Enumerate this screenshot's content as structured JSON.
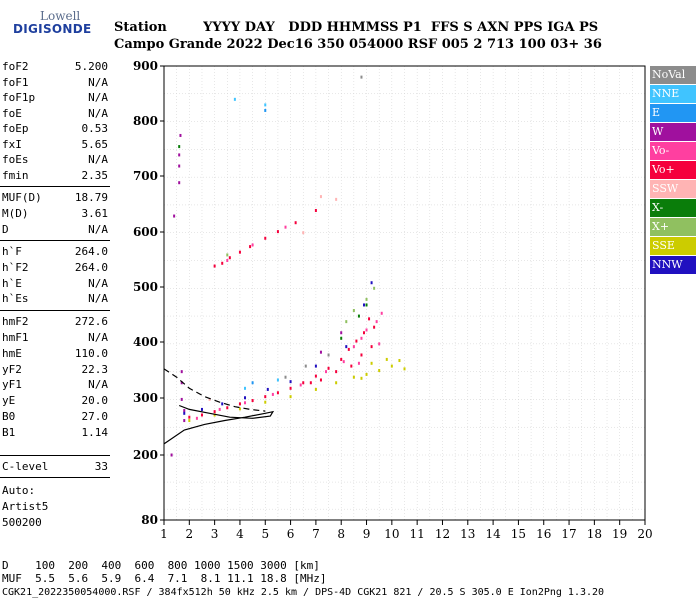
{
  "logo": {
    "line1": "Lowell",
    "line2": "DIGISONDE"
  },
  "header": {
    "row1": "Station        YYYY DAY   DDD HHMMSS P1  FFS S AXN PPS IGA PS",
    "row2": "Campo Grande 2022 Dec16 350 054000 RSF 005 2 713 100 03+ 36"
  },
  "params": [
    {
      "name": "foF2",
      "value": "5.200"
    },
    {
      "name": "foF1",
      "value": "N/A"
    },
    {
      "name": "foF1p",
      "value": "N/A"
    },
    {
      "name": "foE",
      "value": "N/A"
    },
    {
      "name": "foEp",
      "value": "0.53"
    },
    {
      "name": "fxI",
      "value": "5.65"
    },
    {
      "name": "foEs",
      "value": "N/A"
    },
    {
      "name": "fmin",
      "value": "2.35"
    },
    {
      "name": "MUF(D)",
      "value": "18.79"
    },
    {
      "name": "M(D)",
      "value": "3.61"
    },
    {
      "name": "D",
      "value": "N/A"
    },
    {
      "name": "h`F",
      "value": "264.0"
    },
    {
      "name": "h`F2",
      "value": "264.0"
    },
    {
      "name": "h`E",
      "value": "N/A"
    },
    {
      "name": "h`Es",
      "value": "N/A"
    },
    {
      "name": "hmF2",
      "value": "272.6"
    },
    {
      "name": "hmF1",
      "value": "N/A"
    },
    {
      "name": "hmE",
      "value": "110.0"
    },
    {
      "name": "yF2",
      "value": "22.3"
    },
    {
      "name": "yF1",
      "value": "N/A"
    },
    {
      "name": "yE",
      "value": "20.0"
    },
    {
      "name": "B0",
      "value": "27.0"
    },
    {
      "name": "B1",
      "value": "1.14"
    },
    {
      "name": "C-level",
      "value": "33"
    }
  ],
  "auto": {
    "line1": "Auto:",
    "line2": "Artist5",
    "line3": "500200"
  },
  "legend": [
    {
      "label": "NoVal",
      "color": "#8c8c8c"
    },
    {
      "label": "NNE",
      "color": "#40c4ff"
    },
    {
      "label": "E",
      "color": "#2196f3"
    },
    {
      "label": "W",
      "color": "#a0109e"
    },
    {
      "label": "Vo-",
      "color": "#ff3fa0"
    },
    {
      "label": "Vo+",
      "color": "#f5003c"
    },
    {
      "label": "SSW",
      "color": "#ffb4b4"
    },
    {
      "label": "X-",
      "color": "#0a7d0a"
    },
    {
      "label": "X+",
      "color": "#90c060"
    },
    {
      "label": "SSE",
      "color": "#cccc00"
    },
    {
      "label": "NNW",
      "color": "#2010c0"
    }
  ],
  "footer": {
    "dist_row": "D    100  200  400  600  800 1000 1500 3000 [km]",
    "muf_row": "MUF  5.5  5.6  5.9  6.4  7.1  8.1 11.1 18.8 [MHz]",
    "file_row": "CGK21_2022350054000.RSF / 384fx512h 50 kHz 2.5 km / DPS-4D CGK21 821 / 20.5 S 305.0 E Ion2Png 1.3.20"
  },
  "chart_data": {
    "type": "scatter",
    "xlabel": "",
    "ylabel": "",
    "xlim": [
      1,
      20
    ],
    "ylim": [
      80,
      900
    ],
    "xticks": [
      "1",
      "2",
      "3",
      "4",
      "5",
      "6",
      "7",
      "8",
      "9",
      "10",
      "11",
      "12",
      "13",
      "14",
      "15",
      "16",
      "17",
      "18",
      "19",
      "20"
    ],
    "yticks": [
      "80",
      "200",
      "300",
      "400",
      "500",
      "600",
      "700",
      "800",
      "900"
    ],
    "grid": true,
    "legend_position": "right",
    "series": [
      {
        "name": "Vo+",
        "color": "#f5003c",
        "points": [
          [
            2.0,
            268
          ],
          [
            2.5,
            272
          ],
          [
            3.0,
            278
          ],
          [
            3.5,
            285
          ],
          [
            4.0,
            292
          ],
          [
            4.5,
            298
          ],
          [
            5.0,
            305
          ],
          [
            5.5,
            312
          ],
          [
            6.0,
            320
          ],
          [
            6.5,
            330
          ],
          [
            7.0,
            342
          ],
          [
            7.5,
            356
          ],
          [
            8.0,
            372
          ],
          [
            8.3,
            390
          ],
          [
            8.6,
            405
          ],
          [
            8.9,
            420
          ],
          [
            9.1,
            445
          ],
          [
            9.3,
            430
          ],
          [
            8.4,
            360
          ],
          [
            8.8,
            380
          ],
          [
            9.2,
            395
          ],
          [
            7.8,
            350
          ],
          [
            7.2,
            335
          ],
          [
            6.8,
            330
          ],
          [
            3.0,
            540
          ],
          [
            3.3,
            545
          ],
          [
            3.6,
            555
          ],
          [
            4.0,
            565
          ],
          [
            4.4,
            575
          ],
          [
            5.0,
            590
          ],
          [
            5.5,
            602
          ],
          [
            6.2,
            618
          ],
          [
            7.0,
            640
          ]
        ]
      },
      {
        "name": "Vo-",
        "color": "#ff3fa0",
        "points": [
          [
            2.3,
            266
          ],
          [
            3.2,
            282
          ],
          [
            4.2,
            294
          ],
          [
            5.3,
            309
          ],
          [
            6.4,
            326
          ],
          [
            7.4,
            350
          ],
          [
            8.1,
            368
          ],
          [
            8.5,
            395
          ],
          [
            8.8,
            410
          ],
          [
            9.0,
            425
          ],
          [
            9.4,
            440
          ],
          [
            9.6,
            455
          ],
          [
            8.7,
            365
          ],
          [
            9.5,
            400
          ],
          [
            3.5,
            550
          ],
          [
            4.5,
            578
          ],
          [
            5.8,
            610
          ]
        ]
      },
      {
        "name": "SSE",
        "color": "#cccc00",
        "points": [
          [
            2.0,
            262
          ],
          [
            3.0,
            272
          ],
          [
            4.0,
            283
          ],
          [
            5.0,
            295
          ],
          [
            6.0,
            305
          ],
          [
            7.0,
            318
          ],
          [
            7.8,
            330
          ],
          [
            8.5,
            340
          ],
          [
            9.0,
            345
          ],
          [
            9.5,
            352
          ],
          [
            10.0,
            360
          ],
          [
            10.3,
            370
          ],
          [
            10.5,
            355
          ],
          [
            9.8,
            372
          ],
          [
            9.2,
            365
          ],
          [
            8.8,
            338
          ]
        ]
      },
      {
        "name": "W",
        "color": "#a0109e",
        "points": [
          [
            1.4,
            630
          ],
          [
            1.6,
            690
          ],
          [
            1.6,
            740
          ],
          [
            1.65,
            775
          ],
          [
            1.6,
            720
          ],
          [
            1.7,
            350
          ],
          [
            1.7,
            330
          ],
          [
            1.7,
            300
          ],
          [
            1.8,
            280
          ],
          [
            1.8,
            262
          ],
          [
            7.2,
            385
          ],
          [
            8.0,
            420
          ],
          [
            1.3,
            200
          ]
        ]
      },
      {
        "name": "NNW",
        "color": "#2010c0",
        "points": [
          [
            1.8,
            275
          ],
          [
            2.5,
            282
          ],
          [
            3.3,
            292
          ],
          [
            4.2,
            303
          ],
          [
            5.1,
            318
          ],
          [
            6.0,
            332
          ],
          [
            7.0,
            360
          ],
          [
            8.2,
            395
          ],
          [
            8.9,
            470
          ],
          [
            9.2,
            510
          ]
        ]
      },
      {
        "name": "X+",
        "color": "#90c060",
        "points": [
          [
            8.5,
            460
          ],
          [
            8.2,
            440
          ],
          [
            3.5,
            560
          ],
          [
            9.3,
            500
          ],
          [
            9.0,
            480
          ]
        ]
      },
      {
        "name": "X-",
        "color": "#0a7d0a",
        "points": [
          [
            1.6,
            755
          ],
          [
            8.7,
            450
          ],
          [
            9.0,
            470
          ],
          [
            8.0,
            410
          ]
        ]
      },
      {
        "name": "SSW",
        "color": "#ffb4b4",
        "points": [
          [
            2.8,
            300
          ],
          [
            6.5,
            600
          ],
          [
            7.2,
            665
          ],
          [
            7.8,
            660
          ]
        ]
      },
      {
        "name": "NNE",
        "color": "#40c4ff",
        "points": [
          [
            3.8,
            840
          ],
          [
            5.0,
            830
          ],
          [
            4.2,
            320
          ],
          [
            5.5,
            335
          ]
        ]
      },
      {
        "name": "E",
        "color": "#2196f3",
        "points": [
          [
            5.0,
            820
          ],
          [
            4.5,
            330
          ]
        ]
      },
      {
        "name": "NoVal",
        "color": "#8c8c8c",
        "points": [
          [
            8.8,
            880
          ],
          [
            5.8,
            340
          ],
          [
            6.6,
            360
          ],
          [
            7.5,
            380
          ]
        ]
      }
    ],
    "curves": [
      {
        "name": "profile-lower",
        "style": "solid",
        "color": "#000000",
        "points": [
          [
            1.0,
            220
          ],
          [
            1.8,
            245
          ],
          [
            2.6,
            255
          ],
          [
            3.4,
            262
          ],
          [
            4.2,
            268
          ],
          [
            5.0,
            275
          ],
          [
            5.3,
            278
          ],
          [
            5.2,
            270
          ],
          [
            4.5,
            266
          ],
          [
            3.6,
            268
          ],
          [
            2.8,
            275
          ],
          [
            2.0,
            282
          ],
          [
            1.6,
            289
          ]
        ]
      },
      {
        "name": "profile-upper",
        "style": "dashed",
        "color": "#000000",
        "points": [
          [
            1.0,
            355
          ],
          [
            1.5,
            340
          ],
          [
            2.0,
            320
          ],
          [
            2.6,
            305
          ],
          [
            3.2,
            295
          ],
          [
            3.8,
            287
          ],
          [
            4.4,
            282
          ],
          [
            5.0,
            279
          ]
        ]
      }
    ]
  }
}
